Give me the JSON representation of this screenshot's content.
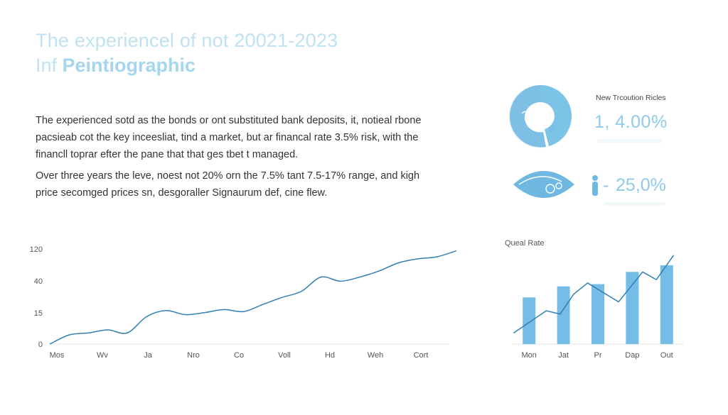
{
  "header": {
    "title_line1": "The experiencel of not 20021-2023",
    "title_line2_prefix": "Inf ",
    "title_line2_bold": "Peintiographic"
  },
  "body": {
    "paragraph1": "The experienced sotd as the bonds or ont substituted bank deposits, it, notieal rbone pacsieab cot the key inceesliat, tind a market, but ar financal rate 3.5% risk, with the financll toprar efter the pane that that ges tbet t managed.",
    "paragraph2": "Over three years the leve, noest not 20% orn the 7.5% tant 7.5-17% range, and kigh price secomged prices sn, desgoraller Signaurum def, cine flew."
  },
  "kpis": {
    "label": "New Trcoution Ricles",
    "value1": "1, 4.00%",
    "value2": "25,0%",
    "value2_dash": "-"
  },
  "colors": {
    "accent": "#6fb8e2",
    "light_accent": "#bfe2f2",
    "line": "#2f7fb3",
    "bar": "#74bde6"
  },
  "chart_data": [
    {
      "type": "line",
      "title": "",
      "xlabel": "",
      "ylabel": "",
      "y_tick_labels": [
        "0",
        "15",
        "40",
        "120"
      ],
      "x_tick_labels": [
        "Mos",
        "Wv",
        "Ja",
        "Nro",
        "Co",
        "Voll",
        "Hd",
        "Weh",
        "Cort"
      ],
      "x": [
        0,
        1,
        2,
        3,
        4,
        5,
        6,
        7,
        8,
        9,
        10,
        11,
        12,
        13,
        14,
        15,
        16,
        17,
        18,
        19,
        20,
        21
      ],
      "values": [
        0,
        0.45,
        0.55,
        0.7,
        0.55,
        1.35,
        1.65,
        1.45,
        1.55,
        1.7,
        1.6,
        1.95,
        2.3,
        2.6,
        3.3,
        3.1,
        3.3,
        3.6,
        4.0,
        4.2,
        4.3,
        4.6
      ],
      "ylim": [
        0,
        5
      ],
      "grid": false,
      "legend": "none"
    },
    {
      "type": "bar",
      "title": "Queal Rate",
      "categories": [
        "Mon",
        "Jat",
        "Pr",
        "Dap",
        "Out"
      ],
      "values": [
        42,
        52,
        54,
        65,
        71
      ],
      "line_overlay": [
        {
          "x": -0.45,
          "y": 10
        },
        {
          "x": 0.5,
          "y": 30
        },
        {
          "x": 0.9,
          "y": 27
        },
        {
          "x": 1.3,
          "y": 45
        },
        {
          "x": 1.7,
          "y": 55
        },
        {
          "x": 2.6,
          "y": 38
        },
        {
          "x": 3.3,
          "y": 65
        },
        {
          "x": 3.7,
          "y": 58
        },
        {
          "x": 4.2,
          "y": 80
        }
      ],
      "ylim": [
        0,
        85
      ],
      "grid": false,
      "legend": "none"
    }
  ]
}
